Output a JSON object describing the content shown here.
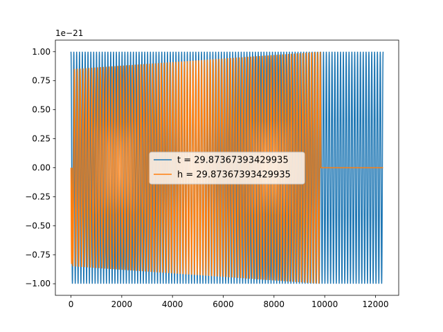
{
  "chart_data": {
    "type": "line",
    "title": "",
    "xlabel": "",
    "ylabel": "",
    "y_offset_text": "1e−21",
    "xlim": [
      -615,
      12915
    ],
    "ylim": [
      -1.1,
      1.1
    ],
    "x_ticks": [
      0,
      2000,
      4000,
      6000,
      8000,
      10000,
      12000
    ],
    "x_tick_labels": [
      "0",
      "2000",
      "4000",
      "6000",
      "8000",
      "10000",
      "12000"
    ],
    "y_ticks": [
      1.0,
      0.75,
      0.5,
      0.25,
      0.0,
      -0.25,
      -0.5,
      -0.75,
      -1.0
    ],
    "y_tick_labels": [
      "1.00",
      "0.75",
      "0.50",
      "0.25",
      "0.00",
      "−0.25",
      "−0.50",
      "−0.75",
      "−1.00"
    ],
    "grid": false,
    "legend_position": "center",
    "series": [
      {
        "name": "t = 29.87367393429935",
        "color": "#1f77b4",
        "segments": [
          {
            "x_start": 0,
            "x_end": 12300,
            "cycles": 110,
            "amp_start": 1.0,
            "amp_end": 1.0,
            "phase": "cos"
          }
        ]
      },
      {
        "name": "h = 29.87367393429935",
        "color": "#ff7f0e",
        "segments": [
          {
            "x_start": 0,
            "x_end": 50,
            "cycles": 0.5,
            "amp_start": 0.83,
            "amp_end": 0.83,
            "phase": "sin"
          },
          {
            "x_start": 50,
            "x_end": 9850,
            "cycles": 86,
            "amp_start": 0.85,
            "amp_end": 1.0,
            "phase": "sin"
          },
          {
            "x_start": 9850,
            "x_end": 12300,
            "cycles": 0,
            "amp_start": 0,
            "amp_end": 0,
            "phase": "flat"
          }
        ]
      }
    ]
  }
}
